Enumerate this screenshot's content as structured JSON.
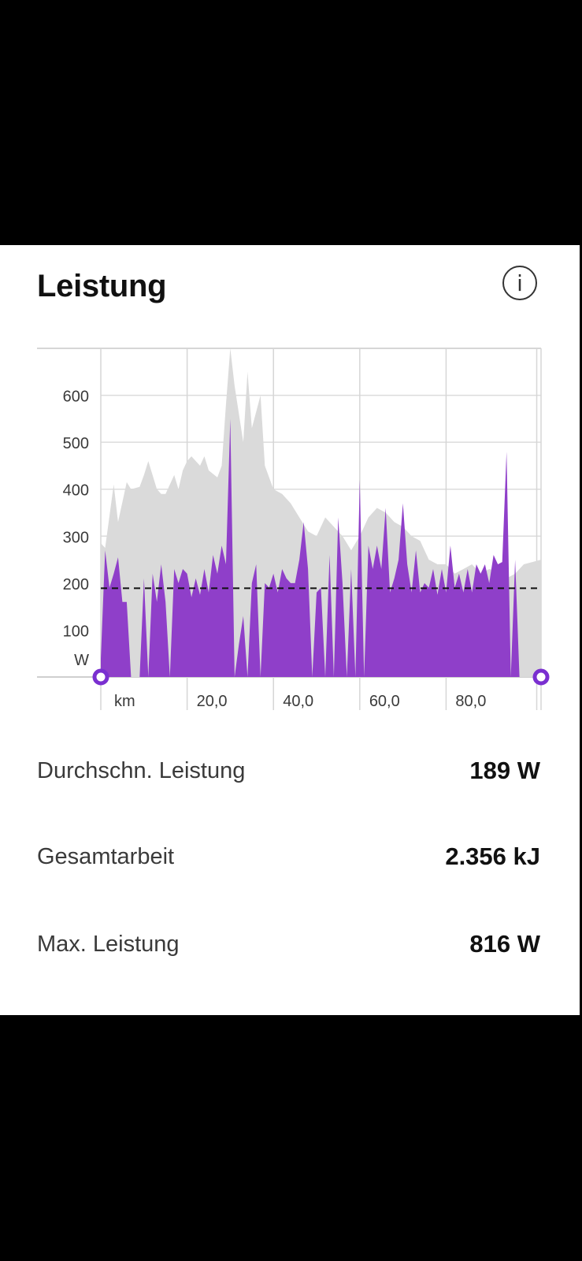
{
  "card": {
    "title": "Leistung",
    "info_icon": "info-icon",
    "info_symbol": "i"
  },
  "chart_data": {
    "type": "area",
    "xlabel": "km",
    "ylabel": "W",
    "x_tick_labels": [
      "20,0",
      "40,0",
      "60,0",
      "80,0"
    ],
    "x_ticks": [
      20,
      40,
      60,
      80
    ],
    "y_tick_labels": [
      "100",
      "200",
      "300",
      "400",
      "500",
      "600"
    ],
    "y_ticks": [
      100,
      200,
      300,
      400,
      500,
      600
    ],
    "xlim": [
      0,
      102
    ],
    "ylim": [
      0,
      700
    ],
    "average_line": 189,
    "grid": true,
    "colors": {
      "power": "#8F3FC9",
      "elevation": "#DADADA",
      "marker": "#7A2FD0"
    },
    "series": [
      {
        "name": "elevation",
        "x": [
          0,
          1,
          3,
          4,
          6,
          7,
          9,
          10,
          11,
          13,
          14,
          15,
          17,
          18,
          19,
          20,
          21,
          22,
          23,
          24,
          25,
          27,
          28,
          29,
          30,
          31,
          32,
          33,
          34,
          35,
          37,
          38,
          40,
          42,
          44,
          46,
          48,
          50,
          52,
          54,
          56,
          58,
          60,
          62,
          64,
          66,
          68,
          70,
          72,
          74,
          76,
          78,
          80,
          82,
          84,
          86,
          88,
          90,
          92,
          94,
          96,
          98,
          100,
          102
        ],
        "values": [
          285,
          275,
          410,
          330,
          415,
          400,
          405,
          430,
          460,
          400,
          390,
          390,
          430,
          400,
          440,
          460,
          470,
          460,
          450,
          470,
          440,
          425,
          450,
          580,
          700,
          620,
          560,
          500,
          650,
          530,
          600,
          450,
          400,
          390,
          370,
          340,
          310,
          300,
          340,
          320,
          300,
          270,
          300,
          340,
          360,
          350,
          330,
          320,
          300,
          290,
          250,
          240,
          240,
          220,
          230,
          240,
          220,
          230,
          225,
          210,
          220,
          240,
          245,
          250
        ]
      },
      {
        "name": "power",
        "x": [
          0,
          1,
          2,
          3,
          4,
          5,
          6,
          7,
          8,
          9,
          10,
          11,
          12,
          13,
          14,
          15,
          16,
          17,
          18,
          19,
          20,
          21,
          22,
          23,
          24,
          25,
          26,
          27,
          28,
          29,
          30,
          31,
          32,
          33,
          34,
          35,
          36,
          37,
          38,
          39,
          40,
          41,
          42,
          43,
          44,
          45,
          46,
          47,
          48,
          49,
          50,
          51,
          52,
          53,
          54,
          55,
          56,
          57,
          58,
          59,
          60,
          61,
          62,
          63,
          64,
          65,
          66,
          67,
          68,
          69,
          70,
          71,
          72,
          73,
          74,
          75,
          76,
          77,
          78,
          79,
          80,
          81,
          82,
          83,
          84,
          85,
          86,
          87,
          88,
          89,
          90,
          91,
          92,
          93,
          94,
          95,
          96,
          97,
          98,
          99,
          100,
          101,
          102
        ],
        "values": [
          40,
          270,
          190,
          220,
          255,
          160,
          160,
          0,
          0,
          0,
          210,
          0,
          220,
          160,
          240,
          160,
          0,
          230,
          200,
          230,
          220,
          170,
          210,
          175,
          230,
          180,
          260,
          220,
          280,
          240,
          550,
          0,
          70,
          130,
          0,
          200,
          240,
          0,
          200,
          190,
          220,
          180,
          230,
          210,
          200,
          200,
          250,
          330,
          230,
          0,
          180,
          190,
          0,
          260,
          0,
          340,
          200,
          0,
          230,
          0,
          420,
          0,
          280,
          230,
          280,
          230,
          360,
          180,
          210,
          250,
          370,
          240,
          180,
          270,
          180,
          200,
          190,
          230,
          175,
          230,
          180,
          280,
          190,
          220,
          180,
          230,
          180,
          240,
          220,
          240,
          200,
          260,
          240,
          245,
          480,
          0,
          250,
          0,
          0,
          0,
          0,
          0,
          0
        ]
      }
    ]
  },
  "stats": [
    {
      "label": "Durchschn. Leistung",
      "value": "189 W"
    },
    {
      "label": "Gesamtarbeit",
      "value": "2.356 kJ"
    },
    {
      "label": "Max. Leistung",
      "value": "816 W"
    }
  ]
}
